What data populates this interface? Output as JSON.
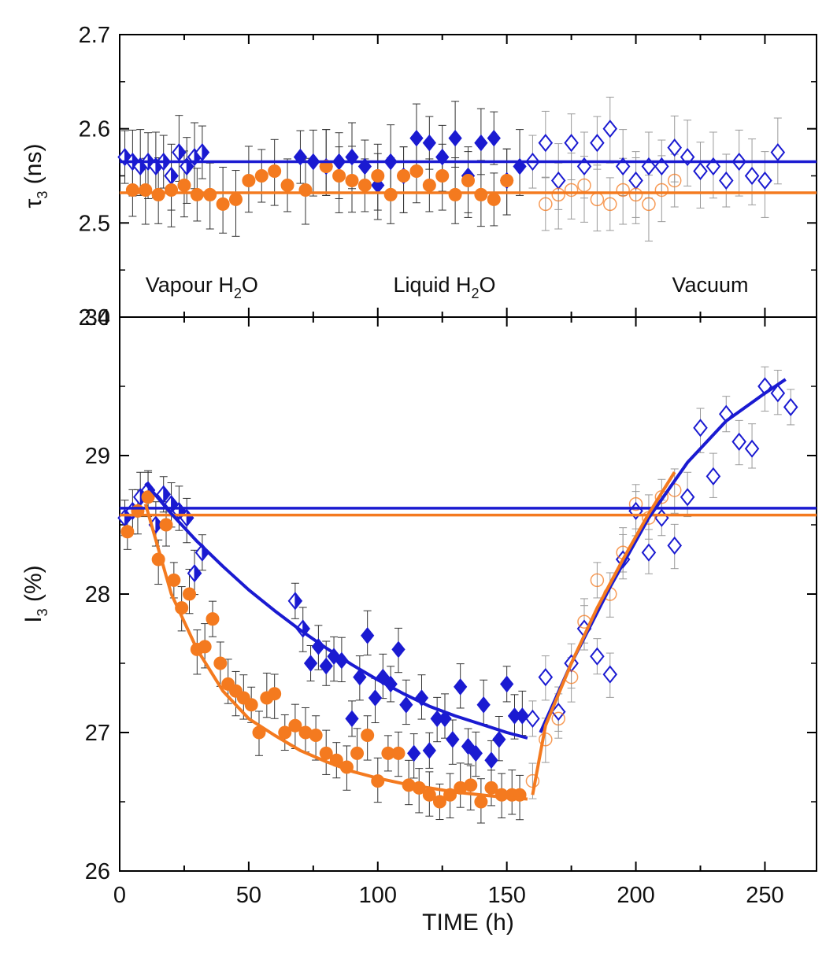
{
  "chart_data": [
    {
      "type": "scatter",
      "panel": "top",
      "ylabel": "τ",
      "ylabel_sub": "3",
      "ylabel_unit": " (ns)",
      "xlim": [
        0,
        270
      ],
      "ylim": [
        2.4,
        2.7
      ],
      "yticks": [
        "2.4",
        "2.5",
        "2.6",
        "2.7"
      ],
      "region_labels": {
        "vapour": "Vapour H",
        "vapour_sub": "2",
        "vapour_end": "O",
        "liquid": "Liquid H",
        "liquid_sub": "2",
        "liquid_end": "O",
        "vacuum": "Vacuum"
      },
      "reference_lines": [
        {
          "name": "diamond-reference",
          "y": 2.565,
          "color": "#1a1ad1"
        },
        {
          "name": "circle-reference",
          "y": 2.532,
          "color": "#f47a1f"
        }
      ],
      "series": [
        {
          "name": "diamond-vapour",
          "marker": "half-diamond",
          "color": "#1a1ad1",
          "x": [
            2,
            5,
            8,
            11,
            14,
            17,
            20,
            23,
            26,
            29,
            32
          ],
          "y": [
            2.57,
            2.565,
            2.56,
            2.565,
            2.56,
            2.565,
            2.55,
            2.575,
            2.56,
            2.57,
            2.575
          ]
        },
        {
          "name": "diamond-liquid",
          "marker": "filled-diamond",
          "color": "#1a1ad1",
          "x": [
            70,
            75,
            80,
            85,
            90,
            95,
            100,
            105,
            110,
            115,
            120,
            125,
            130,
            135,
            140,
            145,
            150,
            155
          ],
          "y": [
            2.57,
            2.565,
            2.56,
            2.565,
            2.57,
            2.56,
            2.54,
            2.565,
            2.55,
            2.59,
            2.585,
            2.57,
            2.59,
            2.55,
            2.585,
            2.59,
            2.545,
            2.56
          ]
        },
        {
          "name": "diamond-vacuum",
          "marker": "open-diamond",
          "color": "#1a1ad1",
          "x": [
            160,
            165,
            170,
            175,
            180,
            185,
            190,
            195,
            200,
            205,
            210,
            215,
            220,
            225,
            230,
            235,
            240,
            245,
            250,
            255
          ],
          "y": [
            2.565,
            2.585,
            2.545,
            2.585,
            2.56,
            2.585,
            2.6,
            2.56,
            2.545,
            2.56,
            2.56,
            2.58,
            2.57,
            2.555,
            2.56,
            2.545,
            2.565,
            2.55,
            2.545,
            2.575
          ]
        },
        {
          "name": "circle-vapour",
          "marker": "filled-circle",
          "color": "#f47a1f",
          "x": [
            5,
            10,
            15,
            20,
            25,
            30,
            35,
            40,
            45,
            50,
            55,
            60
          ],
          "y": [
            2.535,
            2.535,
            2.53,
            2.535,
            2.54,
            2.53,
            2.53,
            2.52,
            2.525,
            2.545,
            2.55,
            2.555
          ]
        },
        {
          "name": "circle-liquid",
          "marker": "filled-circle",
          "color": "#f47a1f",
          "x": [
            65,
            72,
            80,
            85,
            90,
            95,
            100,
            105,
            110,
            115,
            120,
            125,
            130,
            135,
            140,
            145,
            150
          ],
          "y": [
            2.54,
            2.535,
            2.56,
            2.55,
            2.545,
            2.54,
            2.55,
            2.53,
            2.55,
            2.555,
            2.54,
            2.55,
            2.53,
            2.545,
            2.53,
            2.525,
            2.545
          ]
        },
        {
          "name": "circle-vacuum",
          "marker": "open-circle",
          "color": "#f47a1f",
          "x": [
            165,
            170,
            175,
            180,
            185,
            190,
            195,
            200,
            205,
            210,
            215
          ],
          "y": [
            2.52,
            2.53,
            2.535,
            2.54,
            2.525,
            2.52,
            2.535,
            2.53,
            2.52,
            2.535,
            2.545
          ]
        }
      ]
    },
    {
      "type": "scatter",
      "panel": "bottom",
      "xlabel": "TIME (h)",
      "ylabel": "I",
      "ylabel_sub": "3",
      "ylabel_unit": " (%)",
      "xlim": [
        0,
        270
      ],
      "ylim": [
        26,
        30
      ],
      "xticks": [
        "0",
        "50",
        "100",
        "150",
        "200",
        "250"
      ],
      "yticks": [
        "26",
        "27",
        "28",
        "29",
        "30"
      ],
      "reference_lines": [
        {
          "name": "diamond-reference",
          "y": 28.62,
          "color": "#1a1ad1"
        },
        {
          "name": "circle-reference",
          "y": 28.57,
          "color": "#f47a1f"
        }
      ],
      "series": [
        {
          "name": "diamond-vapour",
          "marker": "half-diamond",
          "color": "#1a1ad1",
          "x": [
            2,
            5,
            8,
            11,
            14,
            17,
            20,
            23,
            26,
            29,
            32
          ],
          "y": [
            28.55,
            28.6,
            28.7,
            28.75,
            28.5,
            28.72,
            28.65,
            28.6,
            28.55,
            28.15,
            28.3
          ]
        },
        {
          "name": "diamond-liquid-a",
          "marker": "half-diamond",
          "color": "#1a1ad1",
          "x": [
            68,
            71
          ],
          "y": [
            27.95,
            27.75
          ]
        },
        {
          "name": "diamond-liquid",
          "marker": "filled-diamond",
          "color": "#1a1ad1",
          "x": [
            74,
            77,
            80,
            83,
            86,
            90,
            93,
            96,
            99,
            102,
            105,
            108,
            111,
            114,
            117,
            120,
            123,
            126,
            129,
            132,
            135,
            138,
            141,
            144,
            147,
            150,
            153,
            156
          ],
          "y": [
            27.5,
            27.62,
            27.48,
            27.55,
            27.52,
            27.1,
            27.4,
            27.7,
            27.25,
            27.4,
            27.35,
            27.6,
            27.2,
            26.85,
            27.25,
            26.87,
            27.1,
            27.1,
            26.95,
            27.33,
            26.9,
            26.85,
            27.2,
            26.8,
            26.95,
            27.35,
            27.12,
            27.12
          ]
        },
        {
          "name": "diamond-vacuum",
          "marker": "open-diamond",
          "color": "#1a1ad1",
          "x": [
            160,
            165,
            170,
            175,
            180,
            185,
            190,
            195,
            200,
            205,
            210,
            215,
            220,
            225,
            230,
            235,
            240,
            245,
            250,
            255,
            260
          ],
          "y": [
            27.1,
            27.4,
            27.15,
            27.5,
            27.75,
            27.55,
            27.42,
            28.25,
            28.6,
            28.3,
            28.55,
            28.35,
            28.7,
            29.2,
            28.85,
            29.3,
            29.1,
            29.05,
            29.5,
            29.45,
            29.35
          ]
        },
        {
          "name": "circle-vapour",
          "marker": "filled-circle",
          "color": "#f47a1f",
          "x": [
            3,
            7,
            11,
            15,
            18,
            21,
            24,
            27,
            30,
            33,
            36,
            39,
            42,
            45,
            48,
            51,
            54,
            57,
            60
          ],
          "y": [
            28.45,
            28.6,
            28.7,
            28.25,
            28.5,
            28.1,
            27.9,
            28.0,
            27.6,
            27.62,
            27.82,
            27.5,
            27.35,
            27.3,
            27.25,
            27.2,
            27.0,
            27.25,
            27.28
          ]
        },
        {
          "name": "circle-liquid",
          "marker": "filled-circle",
          "color": "#f47a1f",
          "x": [
            64,
            68,
            72,
            76,
            80,
            84,
            88,
            92,
            96,
            100,
            104,
            108,
            112,
            116,
            120,
            124,
            128,
            132,
            136,
            140,
            144,
            148,
            152,
            155
          ],
          "y": [
            27.0,
            27.05,
            27.0,
            26.98,
            26.85,
            26.8,
            26.75,
            26.85,
            26.98,
            26.65,
            26.85,
            26.85,
            26.62,
            26.6,
            26.55,
            26.5,
            26.55,
            26.6,
            26.62,
            26.5,
            26.6,
            26.55,
            26.55,
            26.55
          ]
        },
        {
          "name": "circle-vacuum",
          "marker": "open-circle",
          "color": "#f47a1f",
          "x": [
            160,
            165,
            170,
            175,
            180,
            185,
            190,
            195,
            200,
            205,
            210,
            215
          ],
          "y": [
            26.65,
            26.95,
            27.1,
            27.4,
            27.8,
            28.1,
            28.0,
            28.3,
            28.65,
            28.55,
            28.7,
            28.75
          ]
        }
      ],
      "fit_curves": [
        {
          "name": "diamond-decay-fit",
          "color": "#1a1ad1",
          "x": [
            10,
            20,
            30,
            40,
            50,
            60,
            70,
            80,
            90,
            100,
            110,
            120,
            130,
            140,
            150,
            158
          ],
          "y": [
            28.8,
            28.58,
            28.38,
            28.2,
            28.03,
            27.88,
            27.74,
            27.61,
            27.49,
            27.38,
            27.28,
            27.19,
            27.12,
            27.06,
            27.0,
            26.96
          ]
        },
        {
          "name": "circle-decay-fit",
          "color": "#f47a1f",
          "x": [
            10,
            20,
            30,
            40,
            50,
            60,
            70,
            80,
            90,
            100,
            110,
            120,
            130,
            140,
            150,
            158
          ],
          "y": [
            28.65,
            28.0,
            27.6,
            27.3,
            27.1,
            26.98,
            26.87,
            26.79,
            26.72,
            26.67,
            26.63,
            26.6,
            26.57,
            26.55,
            26.53,
            26.52
          ]
        },
        {
          "name": "diamond-recovery-fit",
          "color": "#1a1ad1",
          "x": [
            163,
            175,
            190,
            205,
            220,
            235,
            250,
            258
          ],
          "y": [
            27.0,
            27.5,
            28.05,
            28.55,
            28.95,
            29.25,
            29.45,
            29.55
          ]
        },
        {
          "name": "circle-recovery-fit",
          "color": "#f47a1f",
          "x": [
            160,
            165,
            175,
            185,
            195,
            205,
            215
          ],
          "y": [
            26.55,
            27.05,
            27.5,
            27.9,
            28.25,
            28.58,
            28.88
          ]
        }
      ]
    }
  ]
}
